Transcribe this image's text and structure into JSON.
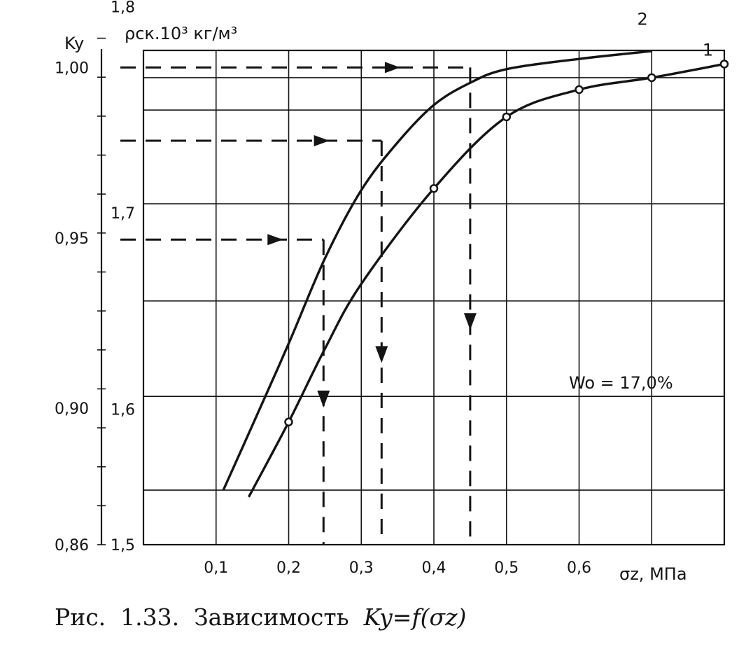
{
  "chart_data": {
    "type": "line",
    "title": "",
    "caption": {
      "label": "Рис.",
      "number": "1.33.",
      "text": "Зависимость",
      "formula": "Ky=f(σz)"
    },
    "xlabel": "σz, МПа",
    "ylabel_left": "Ky",
    "ylabel_inner": "ρск.10³ кг/м³",
    "xlim": [
      0.0,
      0.8
    ],
    "ylim": [
      0.86,
      1.005
    ],
    "x_ticks": [
      {
        "value": 0.1,
        "label": "0,1"
      },
      {
        "value": 0.2,
        "label": "0,2"
      },
      {
        "value": 0.3,
        "label": "0,3"
      },
      {
        "value": 0.4,
        "label": "0,4"
      },
      {
        "value": 0.5,
        "label": "0,5"
      },
      {
        "value": 0.6,
        "label": "0,6"
      }
    ],
    "y_ticks_left": [
      {
        "value": 0.86,
        "label": "0,86"
      },
      {
        "value": 0.9,
        "label": "0,90"
      },
      {
        "value": 0.95,
        "label": "0,95"
      },
      {
        "value": 1.0,
        "label": "1,00"
      }
    ],
    "y_ticks_inner": [
      {
        "value": 0.86,
        "label": "1,5"
      },
      {
        "value": 0.8997,
        "label": "1,6"
      },
      {
        "value": 0.9573,
        "label": "1,7"
      },
      {
        "value": 1.0178,
        "label": "1,8"
      }
    ],
    "annotation": "Wo = 17,0%",
    "grid": true,
    "series": [
      {
        "name": "1",
        "points": [
          [
            0.145,
            0.874
          ],
          [
            0.2,
            0.896
          ],
          [
            0.25,
            0.9175
          ],
          [
            0.3,
            0.9365
          ],
          [
            0.4,
            0.9645
          ],
          [
            0.5,
            0.9855
          ],
          [
            0.6,
            0.9935
          ],
          [
            0.7,
            0.997
          ],
          [
            0.8,
            1.001
          ]
        ],
        "markers": [
          [
            0.2,
            0.896
          ],
          [
            0.4,
            0.9645
          ],
          [
            0.5,
            0.9855
          ],
          [
            0.6,
            0.9935
          ],
          [
            0.7,
            0.997
          ],
          [
            0.8,
            1.001
          ]
        ]
      },
      {
        "name": "2",
        "points": [
          [
            0.11,
            0.876
          ],
          [
            0.15,
            0.895
          ],
          [
            0.2,
            0.919
          ],
          [
            0.25,
            0.944
          ],
          [
            0.3,
            0.964
          ],
          [
            0.35,
            0.978
          ],
          [
            0.4,
            0.989
          ],
          [
            0.45,
            0.9955
          ],
          [
            0.5,
            0.9995
          ],
          [
            0.6,
            1.0025
          ],
          [
            0.7,
            1.0048
          ]
        ],
        "markers": []
      }
    ],
    "guides": [
      {
        "y": 1.0,
        "x": 0.45
      },
      {
        "y": 0.9785,
        "x": 0.328
      },
      {
        "y": 0.9495,
        "x": 0.248
      }
    ]
  }
}
